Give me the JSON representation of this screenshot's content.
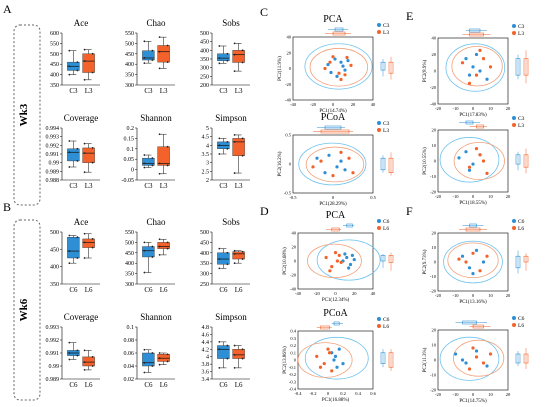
{
  "colors": {
    "blue": "#2e8fd4",
    "orange": "#f2622a",
    "ellipse_blue": "#6ec3ee",
    "ellipse_orange": "#f2a07a",
    "axis": "#000000"
  },
  "sections": [
    {
      "letter": "A",
      "week_label": "Wk3"
    },
    {
      "letter": "B",
      "week_label": "Wk6"
    }
  ],
  "panel_letters": {
    "C": "C",
    "D": "D",
    "E": "E",
    "F": "F"
  },
  "chart_data": [
    {
      "type": "box",
      "title": "Ace",
      "categories": [
        "C3",
        "L3"
      ],
      "ylim": [
        350,
        600
      ],
      "yticks": [
        "350",
        "400",
        "450",
        "500",
        "550",
        "600"
      ],
      "series": [
        {
          "name": "C3",
          "min": 400,
          "q1": 420,
          "median": 440,
          "q3": 460,
          "max": 515
        },
        {
          "name": "L3",
          "min": 375,
          "q1": 410,
          "median": 465,
          "q3": 500,
          "max": 520
        }
      ]
    },
    {
      "type": "box",
      "title": "Chao",
      "categories": [
        "C3",
        "L3"
      ],
      "ylim": [
        300,
        550
      ],
      "yticks": [
        "300",
        "350",
        "400",
        "450",
        "500",
        "550"
      ],
      "series": [
        {
          "name": "C3",
          "min": 405,
          "q1": 420,
          "median": 430,
          "q3": 465,
          "max": 510
        },
        {
          "name": "L3",
          "min": 380,
          "q1": 410,
          "median": 460,
          "q3": 490,
          "max": 530
        }
      ]
    },
    {
      "type": "box",
      "title": "Sobs",
      "categories": [
        "C3",
        "L3"
      ],
      "ylim": [
        200,
        500
      ],
      "yticks": [
        "200",
        "250",
        "300",
        "350",
        "400",
        "450",
        "500"
      ],
      "series": [
        {
          "name": "C3",
          "min": 325,
          "q1": 340,
          "median": 355,
          "q3": 380,
          "max": 425
        },
        {
          "name": "L3",
          "min": 280,
          "q1": 330,
          "median": 375,
          "q3": 400,
          "max": 440
        }
      ]
    },
    {
      "type": "box",
      "title": "Coverage",
      "categories": [
        "C3",
        "L3"
      ],
      "ylim": [
        0.988,
        0.994
      ],
      "yticks": [
        "0.988",
        "0.989",
        "0.99",
        "0.991",
        "0.992",
        "0.993",
        "0.994"
      ],
      "series": [
        {
          "name": "C3",
          "min": 0.9895,
          "q1": 0.9902,
          "median": 0.9912,
          "q3": 0.9916,
          "max": 0.9925
        },
        {
          "name": "L3",
          "min": 0.9889,
          "q1": 0.99,
          "median": 0.9911,
          "q3": 0.9917,
          "max": 0.9922
        }
      ]
    },
    {
      "type": "box",
      "title": "Shannon",
      "categories": [
        "C3",
        "L3"
      ],
      "ylim": [
        -0.05,
        0.2
      ],
      "yticks": [
        "-0.05",
        "0",
        "0.05",
        "0.1",
        "0.15",
        "0.2"
      ],
      "series": [
        {
          "name": "C3",
          "min": 0.01,
          "q1": 0.02,
          "median": 0.03,
          "q3": 0.055,
          "max": 0.07
        },
        {
          "name": "L3",
          "min": -0.02,
          "q1": 0.02,
          "median": 0.03,
          "q3": 0.11,
          "max": 0.17
        }
      ]
    },
    {
      "type": "box",
      "title": "Simpson",
      "categories": [
        "C3",
        "L3"
      ],
      "ylim": [
        2,
        5
      ],
      "yticks": [
        "2",
        "2.5",
        "3",
        "3.5",
        "4",
        "4.5",
        "5"
      ],
      "series": [
        {
          "name": "C3",
          "min": 3.5,
          "q1": 3.8,
          "median": 4.0,
          "q3": 4.2,
          "max": 4.4
        },
        {
          "name": "L3",
          "min": 2.4,
          "q1": 3.4,
          "median": 4.2,
          "q3": 4.4,
          "max": 4.6
        }
      ]
    },
    {
      "type": "box",
      "title": "Ace",
      "categories": [
        "C6",
        "L6"
      ],
      "ylim": [
        350,
        500
      ],
      "yticks": [
        "350",
        "400",
        "450",
        "500"
      ],
      "series": [
        {
          "name": "C6",
          "min": 410,
          "q1": 425,
          "median": 445,
          "q3": 485,
          "max": 490
        },
        {
          "name": "L6",
          "min": 425,
          "q1": 455,
          "median": 470,
          "q3": 480,
          "max": 495
        }
      ]
    },
    {
      "type": "box",
      "title": "Chao",
      "categories": [
        "C6",
        "L6"
      ],
      "ylim": [
        300,
        550
      ],
      "yticks": [
        "300",
        "350",
        "400",
        "450",
        "500",
        "550"
      ],
      "series": [
        {
          "name": "C6",
          "min": 355,
          "q1": 430,
          "median": 460,
          "q3": 480,
          "max": 500
        },
        {
          "name": "L6",
          "min": 440,
          "q1": 470,
          "median": 480,
          "q3": 500,
          "max": 515
        }
      ]
    },
    {
      "type": "box",
      "title": "Sobs",
      "categories": [
        "C6",
        "L6"
      ],
      "ylim": [
        250,
        500
      ],
      "yticks": [
        "250",
        "300",
        "350",
        "400",
        "450",
        "500"
      ],
      "series": [
        {
          "name": "C6",
          "min": 325,
          "q1": 345,
          "median": 370,
          "q3": 400,
          "max": 420
        },
        {
          "name": "L6",
          "min": 350,
          "q1": 370,
          "median": 395,
          "q3": 405,
          "max": 410
        }
      ]
    },
    {
      "type": "box",
      "title": "Coverage",
      "categories": [
        "C6",
        "L6"
      ],
      "ylim": [
        0.989,
        0.993
      ],
      "yticks": [
        "0.989",
        "0.99",
        "0.991",
        "0.992",
        "0.993"
      ],
      "series": [
        {
          "name": "C6",
          "min": 0.9905,
          "q1": 0.9908,
          "median": 0.991,
          "q3": 0.9912,
          "max": 0.9918
        },
        {
          "name": "L6",
          "min": 0.9897,
          "q1": 0.99,
          "median": 0.9903,
          "q3": 0.9907,
          "max": 0.9912
        }
      ]
    },
    {
      "type": "box",
      "title": "Shannon",
      "categories": [
        "C6",
        "L6"
      ],
      "ylim": [
        0.02,
        0.1
      ],
      "yticks": [
        "0.02",
        "0.04",
        "0.06",
        "0.08",
        "0.1"
      ],
      "series": [
        {
          "name": "C6",
          "min": 0.03,
          "q1": 0.04,
          "median": 0.045,
          "q3": 0.06,
          "max": 0.065
        },
        {
          "name": "L6",
          "min": 0.042,
          "q1": 0.047,
          "median": 0.052,
          "q3": 0.058,
          "max": 0.06
        }
      ]
    },
    {
      "type": "box",
      "title": "Simpson",
      "categories": [
        "C6",
        "L6"
      ],
      "ylim": [
        3.4,
        4.8
      ],
      "yticks": [
        "3.4",
        "3.6",
        "3.8",
        "4",
        "4.2",
        "4.4",
        "4.6",
        "4.8"
      ],
      "series": [
        {
          "name": "C6",
          "min": 3.7,
          "q1": 3.95,
          "median": 4.2,
          "q3": 4.3,
          "max": 4.4
        },
        {
          "name": "L6",
          "min": 3.7,
          "q1": 3.95,
          "median": 4.05,
          "q3": 4.2,
          "max": 4.3
        }
      ]
    },
    {
      "type": "scatter",
      "title": "PCA",
      "xlabel": "PC1(14.74%)",
      "ylabel": "PC2(11.9%)",
      "xlim": [
        -40,
        40
      ],
      "ylim": [
        -40,
        40
      ],
      "xticks": [
        "-40",
        "-20",
        "0",
        "20",
        "40"
      ],
      "yticks": [
        "-40",
        "-20",
        "0",
        "20",
        "40"
      ],
      "series": [
        {
          "name": "C3",
          "x": [
            -5,
            2,
            8,
            12,
            4,
            -2,
            10,
            15
          ],
          "y": [
            5,
            12,
            8,
            -2,
            -10,
            -5,
            3,
            10
          ]
        },
        {
          "name": "L3",
          "x": [
            -8,
            6,
            14,
            18,
            0,
            8,
            -3,
            12
          ],
          "y": [
            0,
            -6,
            14,
            4,
            15,
            -14,
            8,
            -8
          ]
        }
      ]
    },
    {
      "type": "scatter",
      "title": "PCoA",
      "xlabel": "PC1(28.29%)",
      "ylabel": "PC2(16.2%)",
      "xlim": [
        -0.5,
        0.5
      ],
      "ylim": [
        -0.5,
        0.5
      ],
      "xticks": [
        "-0.5",
        "0",
        "0.5"
      ],
      "yticks": [
        "-0.5",
        "0",
        "0.5"
      ],
      "series": [
        {
          "name": "C3",
          "x": [
            -0.2,
            -0.05,
            0.05,
            0.1,
            -0.1,
            0.15
          ],
          "y": [
            0.1,
            0.15,
            -0.05,
            0.05,
            -0.15,
            -0.1
          ]
        },
        {
          "name": "L3",
          "x": [
            -0.15,
            0.0,
            0.2,
            0.1,
            -0.25,
            0.25
          ],
          "y": [
            0.05,
            -0.2,
            0.1,
            0.2,
            -0.05,
            -0.15
          ]
        }
      ]
    },
    {
      "type": "scatter",
      "title": "PCA",
      "xlabel": "PC1(12.34%)",
      "ylabel": "PC2(10.68%)",
      "xlim": [
        -40,
        40
      ],
      "ylim": [
        -40,
        40
      ],
      "xticks": [
        "-40",
        "-20",
        "0",
        "20",
        "40"
      ],
      "yticks": [
        "-40",
        "-20",
        "0",
        "20",
        "40"
      ],
      "series": [
        {
          "name": "C6",
          "x": [
            8,
            12,
            16,
            20,
            10,
            14,
            18
          ],
          "y": [
            0,
            5,
            -5,
            2,
            10,
            -10,
            8
          ]
        },
        {
          "name": "L6",
          "x": [
            -10,
            -4,
            0,
            6,
            -6,
            4,
            2
          ],
          "y": [
            5,
            -8,
            12,
            -2,
            -14,
            8,
            0
          ]
        }
      ]
    },
    {
      "type": "scatter",
      "title": "PCoA",
      "xlabel": "PC1(16.88%)",
      "ylabel": "PC2(13.86%)",
      "xlim": [
        -0.4,
        0.6
      ],
      "ylim": [
        -0.4,
        0.4
      ],
      "xticks": [
        "-0.4",
        "-0.2",
        "0",
        "0.2",
        "0.4",
        "0.6"
      ],
      "yticks": [
        "-0.4",
        "-0.3",
        "-0.2",
        "-0.1",
        "0",
        "0.1",
        "0.2",
        "0.3",
        "0.4"
      ],
      "series": [
        {
          "name": "C6",
          "x": [
            0.05,
            0.1,
            0.15,
            0.2,
            0.12,
            0.08
          ],
          "y": [
            0.1,
            0.05,
            0.15,
            -0.05,
            -0.1,
            0.0
          ]
        },
        {
          "name": "L6",
          "x": [
            -0.15,
            -0.05,
            0.0,
            0.05,
            -0.1,
            0.02
          ],
          "y": [
            0.05,
            -0.05,
            0.15,
            -0.15,
            -0.1,
            0.1
          ]
        }
      ]
    },
    {
      "type": "scatter",
      "title": "",
      "xlabel": "PC1(17.83%)",
      "ylabel": "PC2(8.9%)",
      "xlim": [
        -20,
        20
      ],
      "ylim": [
        -40,
        40
      ],
      "xticks": [
        "-20",
        "-10",
        "0",
        "10",
        "20"
      ],
      "yticks": [
        "-40",
        "-20",
        "0",
        "20",
        "40"
      ],
      "series": [
        {
          "name": "C3",
          "x": [
            -4,
            0,
            4,
            8,
            2,
            -2
          ],
          "y": [
            15,
            5,
            0,
            -10,
            20,
            -5
          ]
        },
        {
          "name": "L3",
          "x": [
            -6,
            2,
            6,
            10,
            -2,
            4
          ],
          "y": [
            10,
            -5,
            15,
            5,
            -15,
            25
          ]
        }
      ]
    },
    {
      "type": "scatter",
      "title": "",
      "xlabel": "PC1(18.55%)",
      "ylabel": "PC2(10.55%)",
      "xlim": [
        -20,
        20
      ],
      "ylim": [
        -20,
        20
      ],
      "xticks": [
        "-20",
        "-10",
        "0",
        "10",
        "20"
      ],
      "yticks": [
        "-20",
        "-10",
        "0",
        "10",
        "20"
      ],
      "series": [
        {
          "name": "C3",
          "x": [
            -8,
            -4,
            0,
            4,
            -2
          ],
          "y": [
            2,
            6,
            -2,
            4,
            -6
          ]
        },
        {
          "name": "L3",
          "x": [
            -2,
            2,
            6,
            8,
            4
          ],
          "y": [
            -4,
            8,
            0,
            -8,
            4
          ]
        }
      ]
    },
    {
      "type": "scatter",
      "title": "",
      "xlabel": "PC1(13.16%)",
      "ylabel": "PC2(9.73%)",
      "xlim": [
        -20,
        20
      ],
      "ylim": [
        -20,
        20
      ],
      "xticks": [
        "-20",
        "-10",
        "0",
        "10",
        "20"
      ],
      "yticks": [
        "-20",
        "-10",
        "0",
        "10",
        "20"
      ],
      "series": [
        {
          "name": "C6",
          "x": [
            -6,
            -2,
            2,
            6,
            0
          ],
          "y": [
            4,
            -4,
            8,
            0,
            -8
          ]
        },
        {
          "name": "L6",
          "x": [
            -4,
            0,
            4,
            8,
            -8
          ],
          "y": [
            0,
            6,
            -6,
            4,
            2
          ]
        }
      ]
    },
    {
      "type": "scatter",
      "title": "",
      "xlabel": "PC1(14.75%)",
      "ylabel": "PC2(11.3%)",
      "xlim": [
        -20,
        20
      ],
      "ylim": [
        -20,
        20
      ],
      "xticks": [
        "-20",
        "-10",
        "0",
        "10",
        "20"
      ],
      "yticks": [
        "-20",
        "-10",
        "0",
        "10",
        "20"
      ],
      "series": [
        {
          "name": "C6",
          "x": [
            -10,
            -4,
            2,
            8,
            -6
          ],
          "y": [
            4,
            -2,
            6,
            -4,
            0
          ]
        },
        {
          "name": "L6",
          "x": [
            -2,
            2,
            6,
            10,
            0
          ],
          "y": [
            -6,
            2,
            -2,
            4,
            8
          ]
        }
      ]
    }
  ]
}
